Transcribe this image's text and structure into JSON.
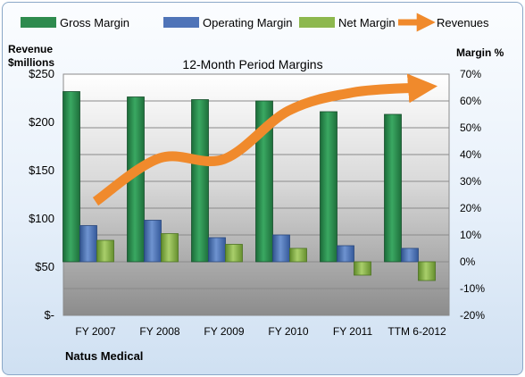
{
  "chart_data": {
    "type": "bar",
    "title": "12-Month Period Margins",
    "company": "Natus Medical",
    "left_axis_title": [
      "Revenue",
      "$millions"
    ],
    "right_axis_title": "Margin %",
    "categories": [
      "FY 2007",
      "FY 2008",
      "FY 2009",
      "FY 2010",
      "FY 2011",
      "TTM 6-2012"
    ],
    "left_ticks": [
      "$-",
      "$50",
      "$100",
      "$150",
      "$200",
      "$250"
    ],
    "right_ticks": [
      "-20%",
      "-10%",
      "0%",
      "10%",
      "20%",
      "30%",
      "40%",
      "50%",
      "60%",
      "70%"
    ],
    "ylim_percent": [
      -20,
      70
    ],
    "ylim_revenue": [
      0,
      250
    ],
    "grid": true,
    "legend_position": "top",
    "series": [
      {
        "name": "Gross Margin",
        "axis": "right",
        "color": "#2e8b4e",
        "values": [
          63.5,
          61.5,
          60.5,
          60.0,
          56.0,
          55.0
        ]
      },
      {
        "name": "Operating Margin",
        "axis": "right",
        "color": "#4f74b8",
        "values": [
          13.5,
          15.5,
          9.0,
          10.0,
          6.0,
          5.0
        ]
      },
      {
        "name": "Net Margin",
        "axis": "right",
        "color": "#8db84e",
        "values": [
          8.0,
          10.5,
          6.5,
          5.0,
          -5.0,
          -7.0
        ]
      },
      {
        "name": "Revenues",
        "axis": "left",
        "color": "#f08a2c",
        "type": "arrow-line",
        "values": [
          118,
          163,
          162,
          212,
          231,
          236
        ]
      }
    ]
  }
}
